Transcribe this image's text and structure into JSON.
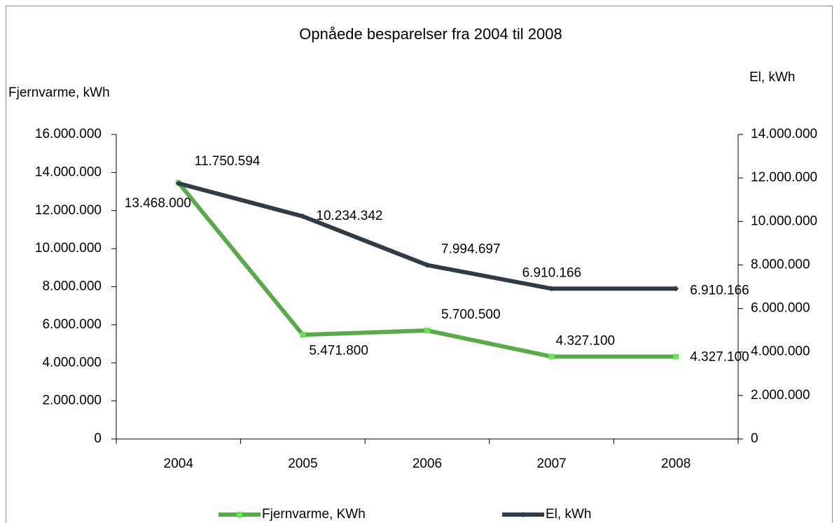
{
  "chart_data": {
    "type": "line",
    "title": "Opnåede besparelser fra 2004 til 2008",
    "y_label": "Fjernvarme, kWh",
    "y2_label": "El, kWh",
    "categories": [
      "2004",
      "2005",
      "2006",
      "2007",
      "2008"
    ],
    "ylim": [
      0,
      16000000
    ],
    "yticks": [
      0,
      {
        "value": 2000000,
        "label": "2.000.000"
      },
      {
        "value": 4000000,
        "label": "4.000.000"
      },
      {
        "value": 6000000,
        "label": "6.000.000"
      },
      {
        "value": 8000000,
        "label": "8.000.000"
      },
      {
        "value": 10000000,
        "label": "10.000.000"
      },
      {
        "value": 12000000,
        "label": "12.000.000"
      },
      {
        "value": 14000000,
        "label": "14.000.000"
      },
      {
        "value": 16000000,
        "label": "16.000.000"
      }
    ],
    "y2lim": [
      0,
      14000000
    ],
    "y2ticks": [
      0,
      {
        "value": 2000000,
        "label": "2.000.000"
      },
      {
        "value": 4000000,
        "label": "4.000.000"
      },
      {
        "value": 6000000,
        "label": "6.000.000"
      },
      {
        "value": 8000000,
        "label": "8.000.000"
      },
      {
        "value": 10000000,
        "label": "10.000.000"
      },
      {
        "value": 12000000,
        "label": "12.000.000"
      },
      {
        "value": 14000000,
        "label": "14.000.000"
      }
    ],
    "series": [
      {
        "name": "Fjernvarme, KWh",
        "color": "#5aaa4b",
        "marker_color": "#6be05a",
        "values": [
          13468000,
          5471800,
          5700500,
          4327100,
          4327100
        ],
        "value_labels": [
          "13.468.000",
          "5.471.800",
          "5.700.500",
          "4.327.100",
          "4.327.100"
        ]
      },
      {
        "name": "El, kWh",
        "color": "#2f3b47",
        "marker_color": "#2f3b47",
        "axis": "y2",
        "values": [
          11750594,
          10234342,
          7994697,
          6910166,
          6910166
        ],
        "value_labels": [
          "11.750.594",
          "10.234.342",
          "7.994.697",
          "6.910.166",
          "6.910.166"
        ]
      }
    ]
  }
}
